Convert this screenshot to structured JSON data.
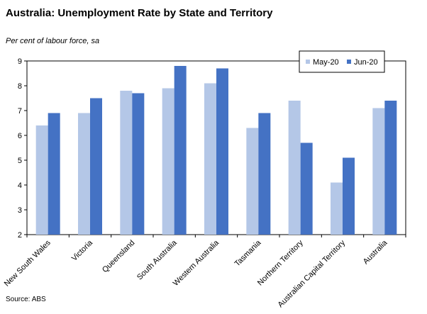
{
  "title": "Australia: Unemployment Rate by State and Territory",
  "subtitle": "Per cent of labour force, sa",
  "source": "Source: ABS",
  "chart_data": {
    "type": "bar",
    "categories": [
      "New South Wales",
      "Victoria",
      "Queensland",
      "South Australia",
      "Western Australia",
      "Tasmania",
      "Northern Territory",
      "Australian Capital Territory",
      "Australia"
    ],
    "series": [
      {
        "name": "May-20",
        "color": "#b4c7e7",
        "values": [
          6.4,
          6.9,
          7.8,
          7.9,
          8.1,
          6.3,
          7.4,
          4.1,
          7.1
        ]
      },
      {
        "name": "Jun-20",
        "color": "#4472c4",
        "values": [
          6.9,
          7.5,
          7.7,
          8.8,
          8.7,
          6.9,
          5.7,
          5.1,
          7.4
        ]
      }
    ],
    "ylim": [
      2,
      9
    ],
    "yticks": [
      "2",
      "3",
      "4",
      "5",
      "6",
      "7",
      "8",
      "9"
    ],
    "grid": false,
    "legend": "top-right"
  }
}
